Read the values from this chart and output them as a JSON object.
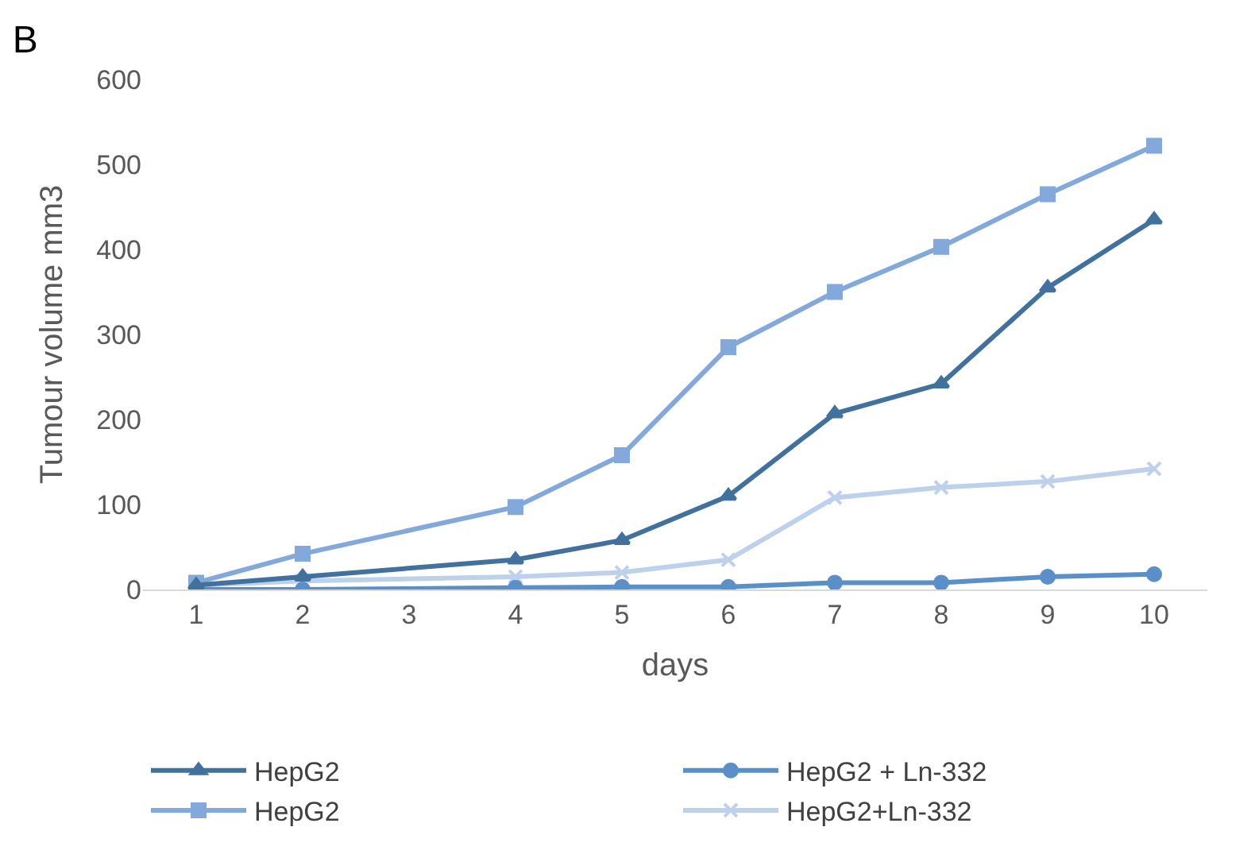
{
  "chart_data": {
    "type": "line",
    "title": "B",
    "xlabel": "days",
    "ylabel": "Tumour volume mm3",
    "x": [
      1,
      2,
      4,
      5,
      6,
      7,
      8,
      9,
      10
    ],
    "xlim": [
      0.5,
      10.5
    ],
    "xticks": [
      1,
      2,
      3,
      4,
      5,
      6,
      7,
      8,
      9,
      10
    ],
    "ylim": [
      0,
      600
    ],
    "yticks": [
      0,
      100,
      200,
      300,
      400,
      500,
      600
    ],
    "grid": false,
    "legend": "bottom",
    "line_style": "solid",
    "series": [
      {
        "name": "HepG2",
        "color": "#41719c",
        "marker": "triangle",
        "values": [
          5,
          15,
          35,
          58,
          110,
          207,
          242,
          355,
          435
        ]
      },
      {
        "name": "HepG2 + Ln-332",
        "color": "#5b8fc7",
        "marker": "circle",
        "values": [
          0,
          0,
          2,
          3,
          3,
          8,
          8,
          15,
          18
        ]
      },
      {
        "name": "HepG2",
        "color": "#82a8dc",
        "marker": "square",
        "values": [
          8,
          42,
          97,
          158,
          285,
          350,
          403,
          465,
          522
        ]
      },
      {
        "name": "HepG2+Ln-332",
        "color": "#bdd0ec",
        "marker": "cross",
        "values": [
          5,
          10,
          15,
          20,
          35,
          108,
          120,
          127,
          142
        ]
      }
    ]
  }
}
